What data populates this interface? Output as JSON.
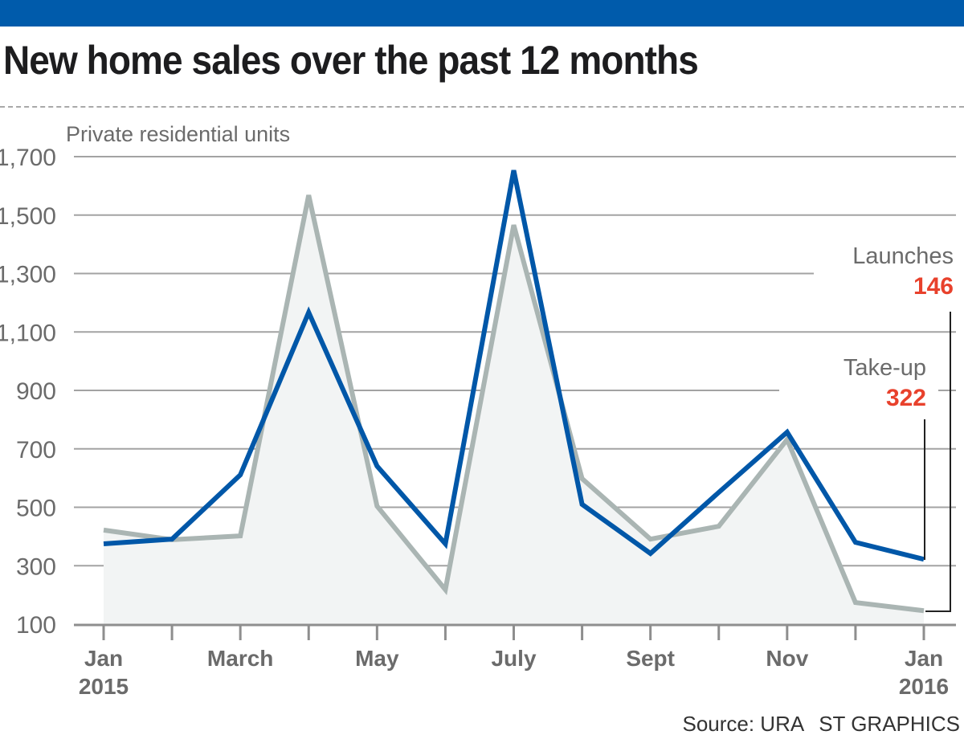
{
  "header": {
    "title": "New home sales over the past 12 months",
    "bar_color": "#005bab"
  },
  "footer": {
    "source": "Source: URA",
    "credit": "ST GRAPHICS"
  },
  "chart_data": {
    "type": "line",
    "title": "New home sales over the past 12 months",
    "ylabel": "Private residential units",
    "xlabel": "",
    "ylim": [
      100,
      1700
    ],
    "yticks": [
      100,
      300,
      500,
      700,
      900,
      1100,
      1300,
      1500,
      1700
    ],
    "ytick_labels": [
      "100",
      "300",
      "500",
      "700",
      "900",
      "1,100",
      "1,300",
      "1,500",
      "1,700"
    ],
    "grid": true,
    "x": [
      "Jan 2015",
      "Feb 2015",
      "Mar 2015",
      "Apr 2015",
      "May 2015",
      "Jun 2015",
      "Jul 2015",
      "Aug 2015",
      "Sep 2015",
      "Oct 2015",
      "Nov 2015",
      "Dec 2015",
      "Jan 2016"
    ],
    "xtick_labels": [
      {
        "index": 0,
        "line1": "Jan",
        "line2": "2015"
      },
      {
        "index": 2,
        "line1": "March",
        "line2": ""
      },
      {
        "index": 4,
        "line1": "May",
        "line2": ""
      },
      {
        "index": 6,
        "line1": "July",
        "line2": ""
      },
      {
        "index": 8,
        "line1": "Sept",
        "line2": ""
      },
      {
        "index": 10,
        "line1": "Nov",
        "line2": ""
      },
      {
        "index": 12,
        "line1": "Jan",
        "line2": "2016"
      }
    ],
    "series": [
      {
        "name": "Launches",
        "color": "#aab5b3",
        "filled": true,
        "fill_color": "#f2f4f4",
        "values": [
          422,
          389,
          402,
          1568,
          504,
          218,
          1466,
          598,
          391,
          435,
          732,
          174,
          146
        ],
        "end_label": "146"
      },
      {
        "name": "Take-up",
        "color": "#0057a8",
        "filled": false,
        "values": [
          375,
          391,
          611,
          1167,
          641,
          375,
          1653,
          510,
          342,
          551,
          757,
          380,
          322
        ],
        "end_label": "322"
      }
    ],
    "legend": "right-inline",
    "highlight_color": "#e8412c"
  }
}
